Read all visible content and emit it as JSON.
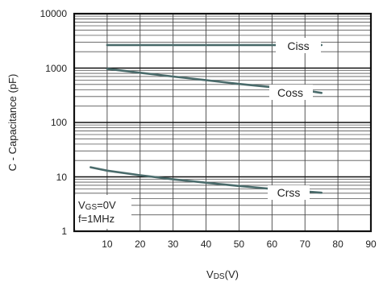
{
  "chart_data": {
    "type": "line",
    "xlabel": {
      "main": "V",
      "sub": "DS",
      "unit": "(V)"
    },
    "ylabel": "C - Capacitance (pF)",
    "x_ticks": [
      "10",
      "20",
      "30",
      "40",
      "50",
      "60",
      "70",
      "80",
      "90"
    ],
    "y_ticks": [
      "10000",
      "1000",
      "100",
      "10",
      "1"
    ],
    "xlim": [
      0,
      90
    ],
    "ylim": [
      1,
      10000
    ],
    "y_scale": "log",
    "grid": true,
    "series": [
      {
        "name": "Ciss",
        "color": "#4a6b6b",
        "x": [
          10,
          20,
          30,
          40,
          50,
          60,
          70,
          75
        ],
        "y": [
          2650,
          2650,
          2650,
          2650,
          2650,
          2650,
          2650,
          2650
        ]
      },
      {
        "name": "Coss",
        "color": "#4a6b6b",
        "x": [
          10,
          20,
          30,
          40,
          50,
          60,
          70,
          75
        ],
        "y": [
          970,
          820,
          700,
          600,
          510,
          445,
          390,
          350
        ]
      },
      {
        "name": "Crss",
        "color": "#4a6b6b",
        "x": [
          5,
          10,
          20,
          30,
          40,
          50,
          60,
          70,
          75
        ],
        "y": [
          15,
          13,
          10.7,
          9,
          7.8,
          6.8,
          6.0,
          5.4,
          5.1
        ]
      }
    ],
    "annotations": [
      {
        "main": "V",
        "sub": "GS",
        "rest": "=0V"
      },
      {
        "text": "f=1MHz"
      }
    ]
  }
}
